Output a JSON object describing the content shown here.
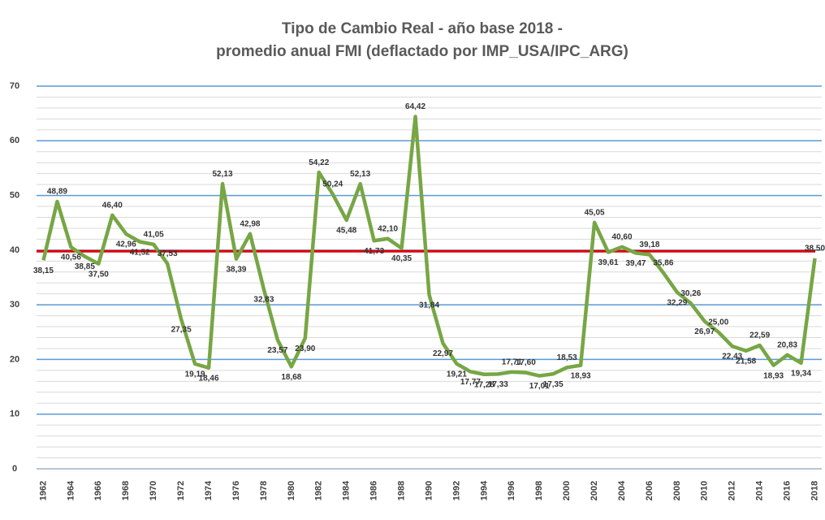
{
  "chart_data": {
    "type": "line",
    "title": [
      "Tipo de Cambio Real - año base 2018 -",
      "promedio anual FMI   (deflactado por IMP_USA/IPC_ARG)"
    ],
    "categories": [
      "1962",
      null,
      "1964",
      null,
      "1966",
      null,
      "1968",
      null,
      "1970",
      null,
      "1972",
      null,
      "1974",
      null,
      "1976",
      null,
      "1978",
      null,
      "1980",
      null,
      "1982",
      null,
      "1984",
      null,
      "1986",
      null,
      "1988",
      null,
      "1990",
      null,
      "1992",
      null,
      "1994",
      null,
      "1996",
      null,
      "1998",
      null,
      "2000",
      null,
      "2002",
      null,
      "2004",
      null,
      "2006",
      null,
      "2008",
      null,
      "2010",
      null,
      "2012",
      null,
      "2014",
      null,
      "2016",
      null,
      "2018"
    ],
    "values": [
      38.15,
      48.89,
      40.56,
      38.85,
      37.5,
      46.4,
      42.96,
      41.52,
      41.05,
      37.53,
      27.35,
      19.19,
      18.46,
      52.13,
      38.39,
      42.98,
      32.83,
      23.57,
      18.68,
      23.9,
      54.22,
      50.24,
      45.48,
      52.13,
      41.73,
      42.1,
      40.35,
      64.42,
      31.84,
      22.97,
      19.21,
      17.77,
      17.28,
      17.33,
      17.71,
      17.6,
      17.01,
      17.35,
      18.53,
      18.93,
      45.05,
      39.61,
      40.6,
      39.47,
      39.18,
      35.86,
      32.29,
      30.26,
      26.97,
      25.0,
      22.43,
      21.58,
      22.59,
      18.93,
      20.83,
      19.34,
      38.5
    ],
    "value_labels": [
      "38,15",
      "48,89",
      "40,56",
      "38,85",
      "37,50",
      "46,40",
      "42,96",
      "41,52",
      "41,05",
      "37,53",
      "27,35",
      "19,19",
      "18,46",
      "52,13",
      "38,39",
      "42,98",
      "32,83",
      "23,57",
      "18,68",
      "23,90",
      "54,22",
      "50,24",
      "45,48",
      "52,13",
      "41,73",
      "42,10",
      "40,35",
      "64,42",
      "31,84",
      "22,97",
      "19,21",
      "17,77",
      "17,28",
      "17,33",
      "17,71",
      "17,60",
      "17,01",
      "17,35",
      "18,53",
      "18,93",
      "45,05",
      "39,61",
      "40,60",
      "39,47",
      "39,18",
      "35,86",
      "32,29",
      "30,26",
      "26,97",
      "25,00",
      "22,43",
      "21,58",
      "22,59",
      "18,93",
      "20,83",
      "19,34",
      "38,50"
    ],
    "color": "#77a645",
    "reference_line": {
      "value": 39.8,
      "color": "#e00000"
    },
    "ylim": [
      0,
      70
    ],
    "yticks": [
      0,
      10,
      20,
      30,
      40,
      50,
      60,
      70
    ],
    "grid": true,
    "grid_color": "#5b9bd5",
    "minor_grid": true
  }
}
